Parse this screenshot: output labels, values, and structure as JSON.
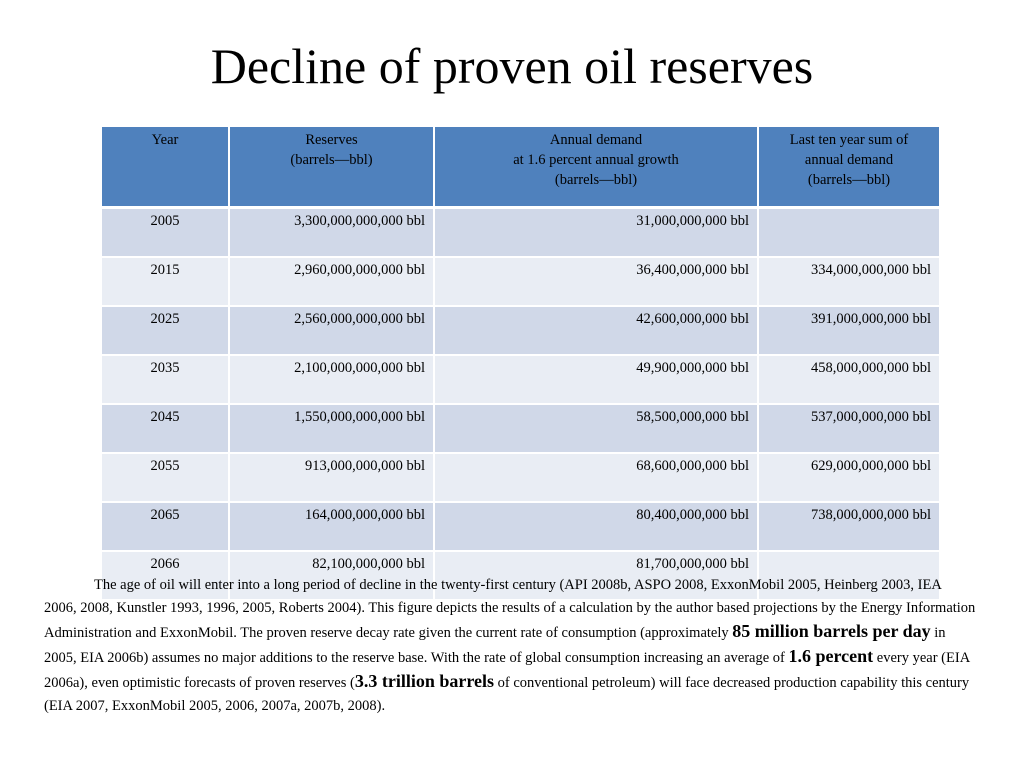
{
  "slide": {
    "title": "Decline of proven oil reserves"
  },
  "table": {
    "headers": [
      [
        "Year"
      ],
      [
        "Reserves",
        "(barrels—bbl)"
      ],
      [
        "Annual demand",
        "at 1.6 percent annual growth",
        "(barrels—bbl)"
      ],
      [
        "Last ten year sum of",
        "annual demand",
        "(barrels—bbl)"
      ]
    ],
    "rows": [
      {
        "year": "2005",
        "reserves": "3,300,000,000,000 bbl",
        "demand": "31,000,000,000 bbl",
        "sum": ""
      },
      {
        "year": "2015",
        "reserves": "2,960,000,000,000 bbl",
        "demand": "36,400,000,000 bbl",
        "sum": "334,000,000,000 bbl"
      },
      {
        "year": "2025",
        "reserves": "2,560,000,000,000 bbl",
        "demand": "42,600,000,000 bbl",
        "sum": "391,000,000,000 bbl"
      },
      {
        "year": "2035",
        "reserves": "2,100,000,000,000 bbl",
        "demand": "49,900,000,000 bbl",
        "sum": "458,000,000,000 bbl"
      },
      {
        "year": "2045",
        "reserves": "1,550,000,000,000 bbl",
        "demand": "58,500,000,000 bbl",
        "sum": "537,000,000,000 bbl"
      },
      {
        "year": "2055",
        "reserves": "913,000,000,000 bbl",
        "demand": "68,600,000,000 bbl",
        "sum": "629,000,000,000 bbl"
      },
      {
        "year": "2065",
        "reserves": "164,000,000,000 bbl",
        "demand": "80,400,000,000 bbl",
        "sum": "738,000,000,000 bbl"
      },
      {
        "year": "2066",
        "reserves": "82,100,000,000 bbl",
        "demand": "81,700,000,000 bbl",
        "sum": ""
      }
    ]
  },
  "caption": {
    "part1": "The age of oil will enter into a long period of decline in the twenty-first century (API 2008b, ASPO 2008, ExxonMobil 2005, Heinberg 2003, IEA 2006, 2008, Kunstler 1993, 1996, 2005, Roberts 2004).  This figure depicts the results of a calculation by the author based projections by the Energy Information Administration and ExxonMobil.  The proven reserve decay rate given the current rate of consumption (approximately ",
    "bold1": "85 million barrels per day",
    "part2": " in 2005, EIA 2006b) assumes no major additions to the reserve base.  With the rate of global consumption increasing an average of ",
    "bold2": "1.6 percent",
    "part3": " every year (EIA 2006a), even optimistic forecasts of proven reserves (",
    "bold3": "3.3 trillion barrels",
    "part4": " of conventional petroleum) will face decreased production capability this century (EIA 2007, ExxonMobil 2005, 2006, 2007a, 2007b, 2008)."
  },
  "colors": {
    "header_bg": "#4f81bd",
    "row_odd": "#d0d8e8",
    "row_even": "#e9edf4"
  }
}
